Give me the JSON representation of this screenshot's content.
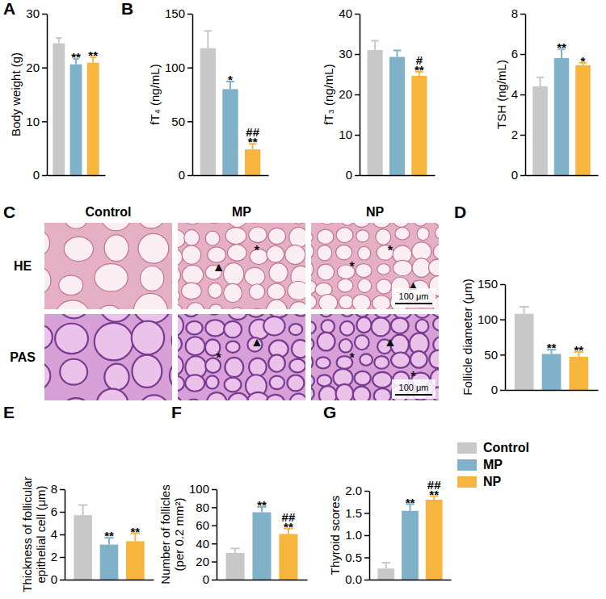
{
  "chart_data": [
    {
      "type": "bar",
      "panel": "A",
      "ylabel": "Body weight (g)",
      "categories": [
        null,
        null,
        null
      ],
      "values": [
        24.5,
        20.6,
        20.9
      ],
      "errors": [
        1.0,
        1.0,
        1.0
      ],
      "colors": [
        "#c8c8c8",
        "#7fb2c9",
        "#f7b53e"
      ],
      "annotations": [
        null,
        [
          "**"
        ],
        [
          "**"
        ]
      ],
      "ylim": [
        0,
        30
      ],
      "yticks": [
        0,
        10,
        20,
        30
      ],
      "tick_labels": "y"
    },
    {
      "type": "bar",
      "panel": "B",
      "ylabel": "fT₄ (ng/mL)",
      "categories": [
        null,
        null,
        null
      ],
      "values": [
        118,
        80,
        24
      ],
      "errors": [
        16,
        7,
        5
      ],
      "colors": [
        "#c8c8c8",
        "#7fb2c9",
        "#f7b53e"
      ],
      "annotations": [
        null,
        [
          "*"
        ],
        [
          "##",
          "**"
        ]
      ],
      "ylim": [
        0,
        150
      ],
      "yticks": [
        0,
        50,
        100,
        150
      ],
      "tick_labels": "y"
    },
    {
      "type": "bar",
      "ylabel": "fT₃ (ng/mL)",
      "categories": [
        null,
        null,
        null
      ],
      "values": [
        31,
        29.3,
        24.6
      ],
      "errors": [
        2.3,
        1.6,
        1.0
      ],
      "colors": [
        "#c8c8c8",
        "#7fb2c9",
        "#f7b53e"
      ],
      "annotations": [
        null,
        null,
        [
          "#",
          "**"
        ]
      ],
      "ylim": [
        0,
        40
      ],
      "yticks": [
        0,
        10,
        20,
        30,
        40
      ],
      "tick_labels": "y"
    },
    {
      "type": "bar",
      "ylabel": "TSH (ng/mL)",
      "categories": [
        null,
        null,
        null
      ],
      "values": [
        4.4,
        5.8,
        5.45
      ],
      "errors": [
        0.45,
        0.45,
        0.12
      ],
      "colors": [
        "#c8c8c8",
        "#7fb2c9",
        "#f7b53e"
      ],
      "annotations": [
        null,
        [
          "**"
        ],
        [
          "*"
        ]
      ],
      "ylim": [
        0,
        8
      ],
      "yticks": [
        0,
        2,
        4,
        6,
        8
      ],
      "tick_labels": "y"
    },
    {
      "type": "bar",
      "panel": "D",
      "ylabel": "Follicle diameter (μm)",
      "categories": [
        null,
        null,
        null
      ],
      "values": [
        108,
        51,
        47
      ],
      "errors": [
        10,
        6,
        7
      ],
      "colors": [
        "#c8c8c8",
        "#7fb2c9",
        "#f7b53e"
      ],
      "annotations": [
        null,
        [
          "**"
        ],
        [
          "**"
        ]
      ],
      "ylim": [
        0,
        150
      ],
      "yticks": [
        0,
        50,
        100,
        150
      ],
      "tick_labels": "y"
    },
    {
      "type": "bar",
      "panel": "E",
      "ylabel": "Thickness of follicular epithelial cell (μm)",
      "categories": [
        null,
        null,
        null
      ],
      "values": [
        5.7,
        3.1,
        3.4
      ],
      "errors": [
        0.9,
        0.6,
        0.7
      ],
      "colors": [
        "#c8c8c8",
        "#7fb2c9",
        "#f7b53e"
      ],
      "annotations": [
        null,
        [
          "**"
        ],
        [
          "**"
        ]
      ],
      "ylim": [
        0,
        8
      ],
      "yticks": [
        0,
        2,
        4,
        6,
        8
      ],
      "tick_labels": "y"
    },
    {
      "type": "bar",
      "panel": "F",
      "ylabel": "Number of follicles (per 0.2 mm²)",
      "categories": [
        null,
        null,
        null
      ],
      "values": [
        29.5,
        74.5,
        50.5
      ],
      "errors": [
        5,
        6,
        6
      ],
      "colors": [
        "#c8c8c8",
        "#7fb2c9",
        "#f7b53e"
      ],
      "annotations": [
        null,
        [
          "**"
        ],
        [
          "##",
          "**"
        ]
      ],
      "ylim": [
        0,
        100
      ],
      "yticks": [
        0,
        20,
        40,
        60,
        80,
        100
      ],
      "tick_labels": "y"
    },
    {
      "type": "bar",
      "panel": "G",
      "ylabel": "Thyroid scores",
      "categories": [
        null,
        null,
        null
      ],
      "values": [
        0.25,
        1.55,
        1.8
      ],
      "errors": [
        0.13,
        0.15,
        0.08
      ],
      "colors": [
        "#c8c8c8",
        "#7fb2c9",
        "#f7b53e"
      ],
      "annotations": [
        null,
        [
          "**"
        ],
        [
          "##",
          "**"
        ]
      ],
      "ylim": [
        0,
        2
      ],
      "yticks": [
        {
          "value": 0,
          "label": "0.0"
        },
        0.5,
        {
          "value": 1,
          "label": "1.0"
        },
        1.5,
        {
          "value": 2,
          "label": "2.0"
        }
      ],
      "tick_labels": "y"
    }
  ],
  "image_panel": {
    "panel": "C",
    "columns": [
      "Control",
      "MP",
      "NP"
    ],
    "rows": [
      "HE",
      "PAS"
    ],
    "scale_bar": "100 μm",
    "symbols": [
      [
        [],
        [
          "▲",
          "*"
        ],
        [
          "*",
          "*",
          "▲"
        ]
      ],
      [
        [],
        [
          "*",
          "▲"
        ],
        [
          "*",
          "▲",
          "*"
        ]
      ]
    ]
  },
  "figure_legend": {
    "entries": [
      {
        "name": "Control",
        "color": "#c8c8c8"
      },
      {
        "name": "MP",
        "color": "#7fb2c9"
      },
      {
        "name": "NP",
        "color": "#f7b53e"
      }
    ]
  }
}
